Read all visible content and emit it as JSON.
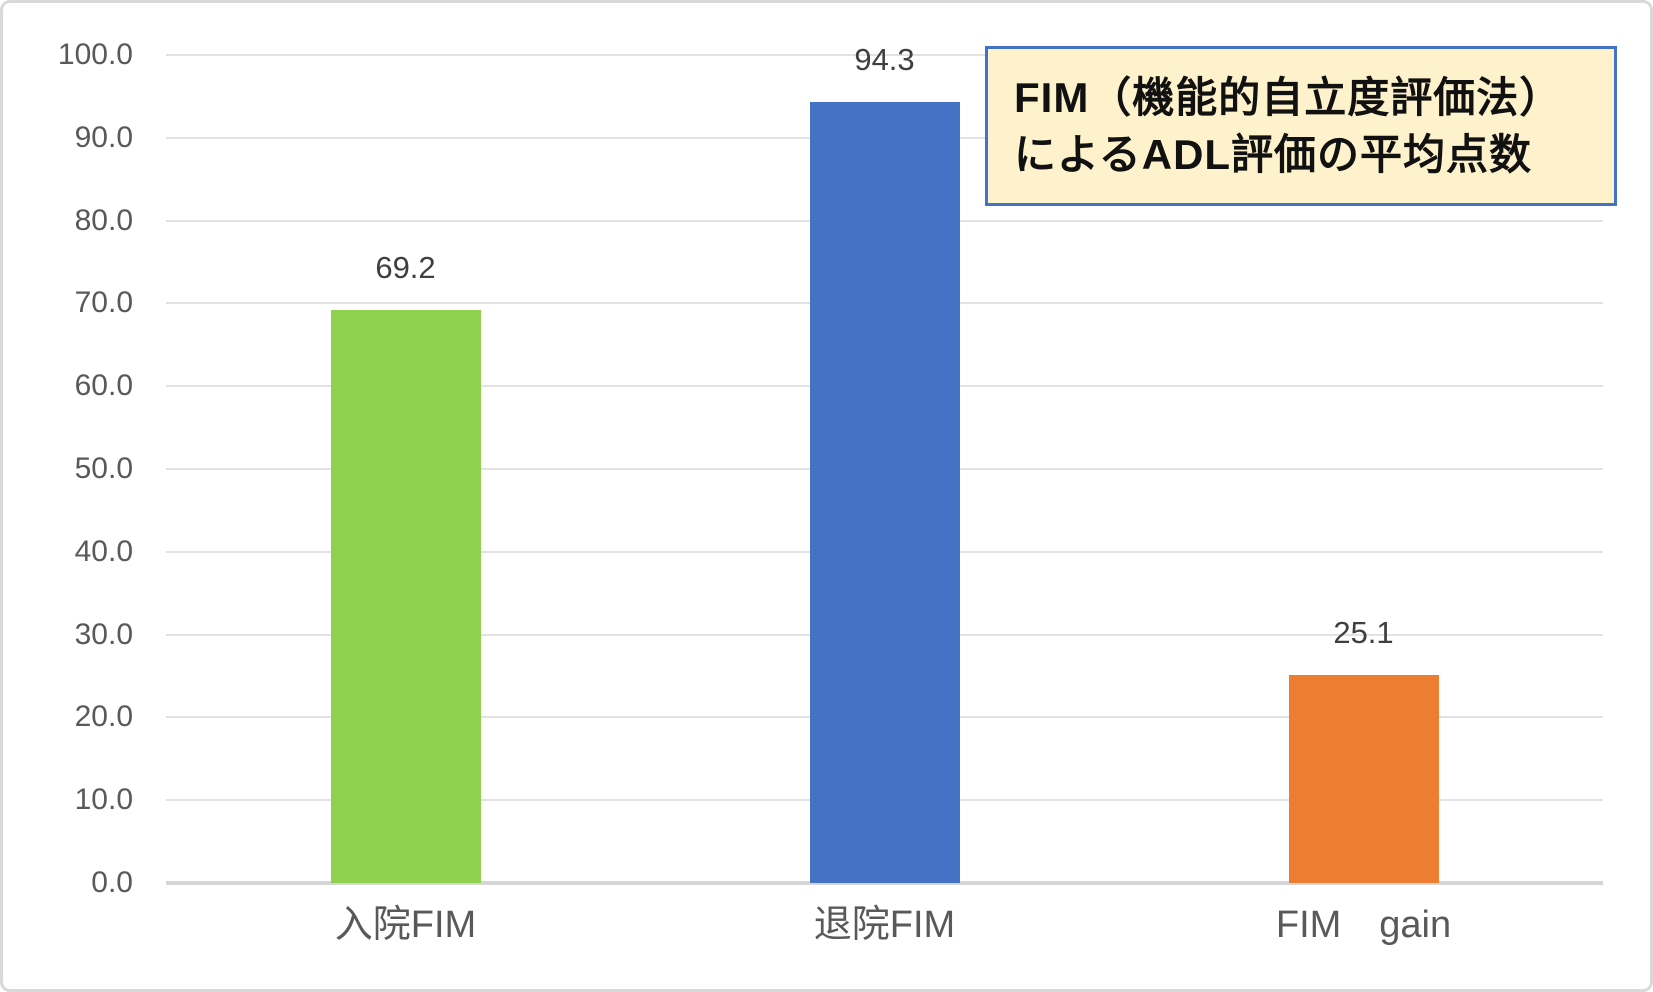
{
  "chart_data": {
    "type": "bar",
    "categories": [
      "入院FIM",
      "退院FIM",
      "FIM　gain"
    ],
    "values": [
      69.2,
      94.3,
      25.1
    ],
    "value_labels": [
      "69.2",
      "94.3",
      "25.1"
    ],
    "bar_colors": [
      "#8fd04e",
      "#4472c4",
      "#ed7d31"
    ],
    "title": "",
    "xlabel": "",
    "ylabel": "",
    "ylim": [
      0,
      100
    ],
    "ytick_step": 10,
    "ytick_labels": [
      "0.0",
      "10.0",
      "20.0",
      "30.0",
      "40.0",
      "50.0",
      "60.0",
      "70.0",
      "80.0",
      "90.0",
      "100.0"
    ],
    "grid": true,
    "legend": "none",
    "annotation": {
      "lines": [
        "FIM（機能的自立度評価法）",
        "によるADL評価の平均点数"
      ],
      "fill_color": "#fdf2cc",
      "border_color": "#4472c4"
    }
  },
  "colors": {
    "gridline": "#e2e2e2",
    "axis_baseline": "#d6d6d6",
    "tick_label": "#595959",
    "value_label": "#3f3f3f",
    "frame_border": "#d9d9d9",
    "background": "#ffffff"
  }
}
